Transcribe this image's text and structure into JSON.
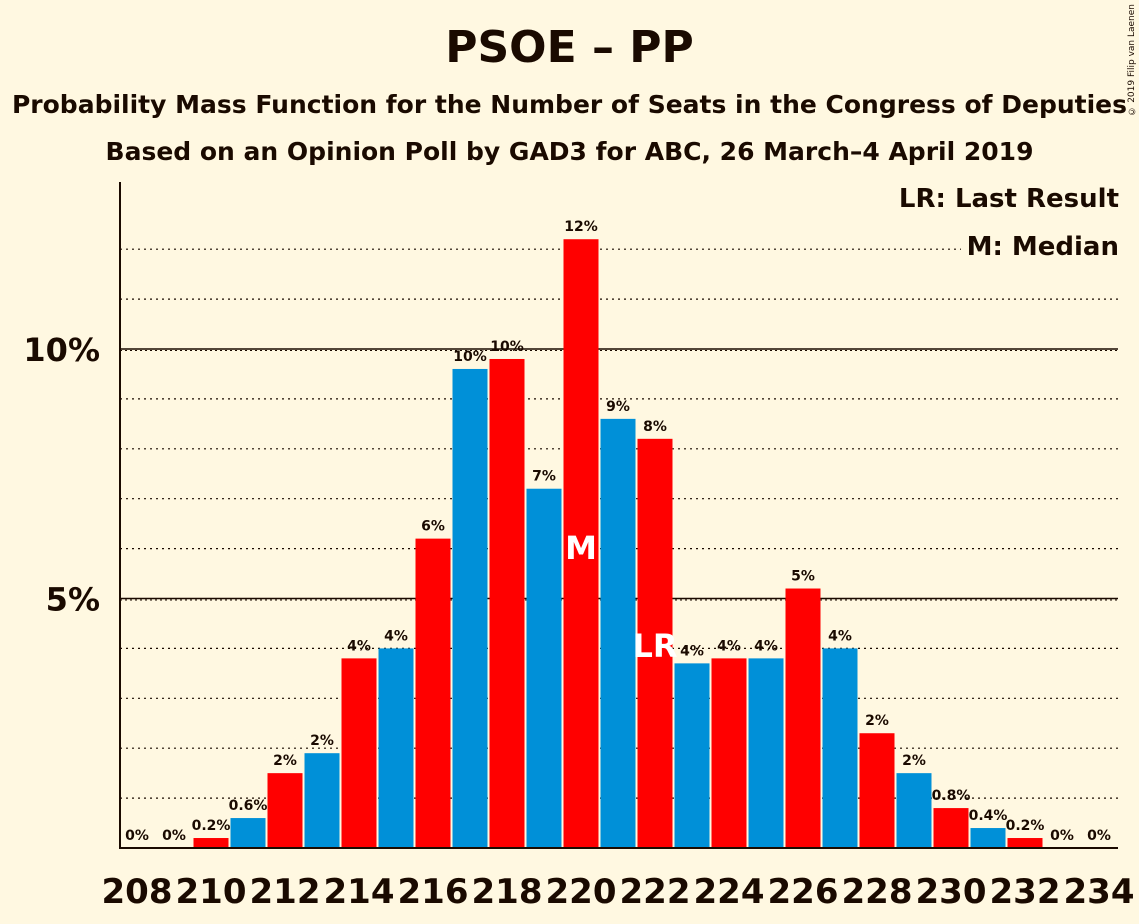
{
  "title": "PSOE – PP",
  "subtitle1": "Probability Mass Function for the Number of Seats in the Congress of Deputies",
  "subtitle2": "Based on an Opinion Poll by GAD3 for ABC, 26 March–4 April 2019",
  "copyright": "© 2019 Filip van Laenen",
  "legend": {
    "lr": "LR: Last Result",
    "m": "M: Median"
  },
  "colors": {
    "red": "#ff0000",
    "blue": "#0090d8",
    "background": "#fff8e1"
  },
  "chart_data": {
    "type": "bar",
    "x": [
      208,
      209,
      210,
      211,
      212,
      213,
      214,
      215,
      216,
      217,
      218,
      219,
      220,
      221,
      222,
      223,
      224,
      225,
      226,
      227,
      228,
      229,
      230,
      231,
      232,
      233,
      234
    ],
    "values": [
      0,
      0,
      0.2,
      0.6,
      1.5,
      1.9,
      3.8,
      4.0,
      6.2,
      9.6,
      9.8,
      7.2,
      12.2,
      8.6,
      8.2,
      3.7,
      3.8,
      3.8,
      5.2,
      4.0,
      2.3,
      1.5,
      0.8,
      0.4,
      0.2,
      0,
      0
    ],
    "labels": [
      "0%",
      "0%",
      "0.2%",
      "0.6%",
      "2%",
      "2%",
      "4%",
      "4%",
      "6%",
      "10%",
      "10%",
      "7%",
      "12%",
      "9%",
      "8%",
      "4%",
      "4%",
      "4%",
      "5%",
      "4%",
      "2%",
      "2%",
      "0.8%",
      "0.4%",
      "0.2%",
      "0%",
      "0%"
    ],
    "bar_colors": [
      "red",
      "blue",
      "red",
      "blue",
      "red",
      "blue",
      "red",
      "blue",
      "red",
      "blue",
      "red",
      "blue",
      "red",
      "blue",
      "red",
      "blue",
      "red",
      "blue",
      "red",
      "blue",
      "red",
      "blue",
      "red",
      "blue",
      "red",
      "blue",
      "red"
    ],
    "x_tick_labels": [
      "208",
      "210",
      "212",
      "214",
      "216",
      "218",
      "220",
      "222",
      "224",
      "226",
      "228",
      "230",
      "232",
      "234"
    ],
    "y_tick_labels": [
      "5%",
      "10%"
    ],
    "y_ticks": [
      5,
      10
    ],
    "ylim": [
      0,
      13
    ],
    "median": {
      "seat": 220,
      "label": "M"
    },
    "last_result": {
      "seat": 222,
      "label": "LR"
    },
    "grid": "dotted every 1%"
  }
}
